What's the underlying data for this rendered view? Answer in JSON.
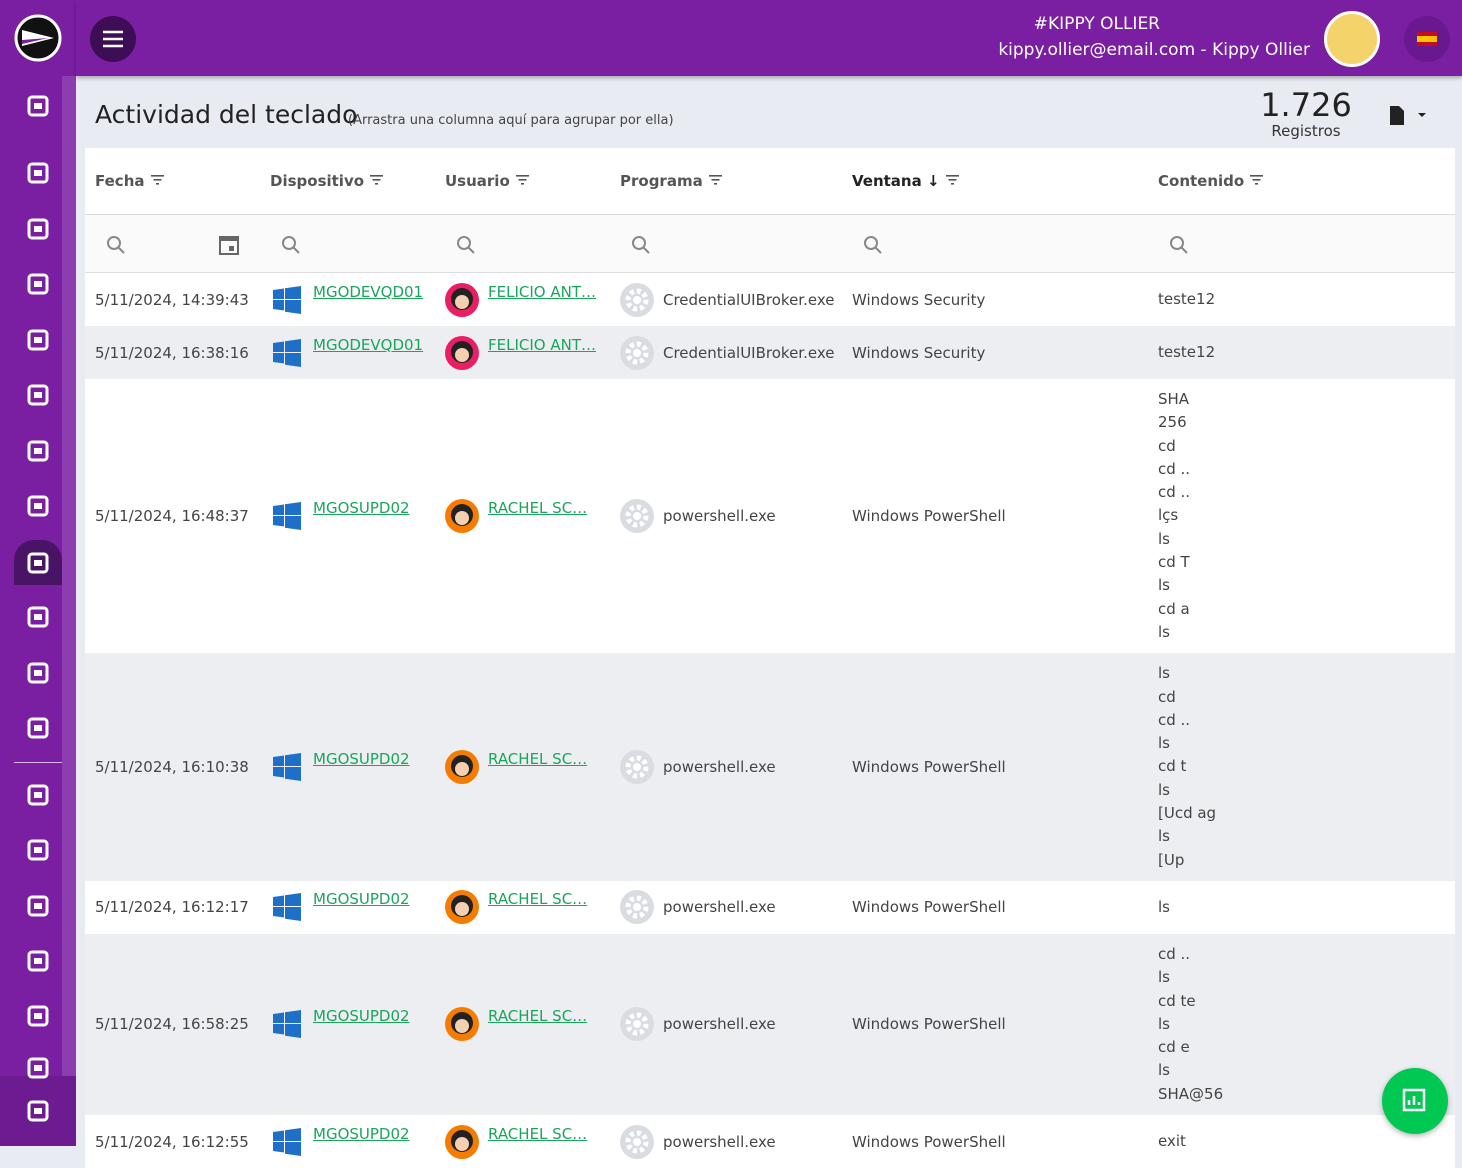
{
  "header": {
    "user_tag": "#KIPPY OLLIER",
    "user_line": "kippy.ollier@email.com - Kippy Ollier"
  },
  "page": {
    "title": "Actividad del teclado",
    "hint": "(Arrastra una columna aquí para agrupar por ella)",
    "count": "1.726",
    "count_label": "Registros"
  },
  "table": {
    "columns": [
      "Fecha",
      "Dispositivo",
      "Usuario",
      "Programa",
      "Ventana ↓",
      "Contenido"
    ],
    "rows": [
      {
        "date": "5/11/2024, 14:39:43",
        "device": "MGODEVQD01",
        "user": "FELICIO ANT…",
        "program": "CredentialUIBroker.exe",
        "window": "Windows Security",
        "content": [
          "teste12"
        ]
      },
      {
        "date": "5/11/2024, 16:38:16",
        "device": "MGODEVQD01",
        "user": "FELICIO ANT…",
        "program": "CredentialUIBroker.exe",
        "window": "Windows Security",
        "content": [
          "teste12"
        ]
      },
      {
        "date": "5/11/2024, 16:48:37",
        "device": "MGOSUPD02",
        "user": "RACHEL SC…",
        "program": "powershell.exe",
        "window": "Windows PowerShell",
        "content": [
          "SHA",
          "256",
          "cd",
          "cd ..",
          "cd ..",
          "lçs",
          "ls",
          "cd T",
          "ls",
          "cd a",
          "ls"
        ]
      },
      {
        "date": "5/11/2024, 16:10:38",
        "device": "MGOSUPD02",
        "user": "RACHEL SC…",
        "program": "powershell.exe",
        "window": "Windows PowerShell",
        "content": [
          "ls",
          "cd",
          "cd ..",
          "ls",
          "cd t",
          "ls",
          "[Ucd ag",
          "ls",
          "[Up"
        ]
      },
      {
        "date": "5/11/2024, 16:12:17",
        "device": "MGOSUPD02",
        "user": "RACHEL SC…",
        "program": "powershell.exe",
        "window": "Windows PowerShell",
        "content": [
          "ls"
        ]
      },
      {
        "date": "5/11/2024, 16:58:25",
        "device": "MGOSUPD02",
        "user": "RACHEL SC…",
        "program": "powershell.exe",
        "window": "Windows PowerShell",
        "content": [
          "cd ..",
          "ls",
          "cd te",
          "ls",
          "cd e",
          "ls",
          "SHA@56"
        ]
      },
      {
        "date": "5/11/2024, 16:12:55",
        "device": "MGOSUPD02",
        "user": "RACHEL SC…",
        "program": "powershell.exe",
        "window": "Windows PowerShell",
        "content": [
          "exit"
        ]
      }
    ]
  }
}
